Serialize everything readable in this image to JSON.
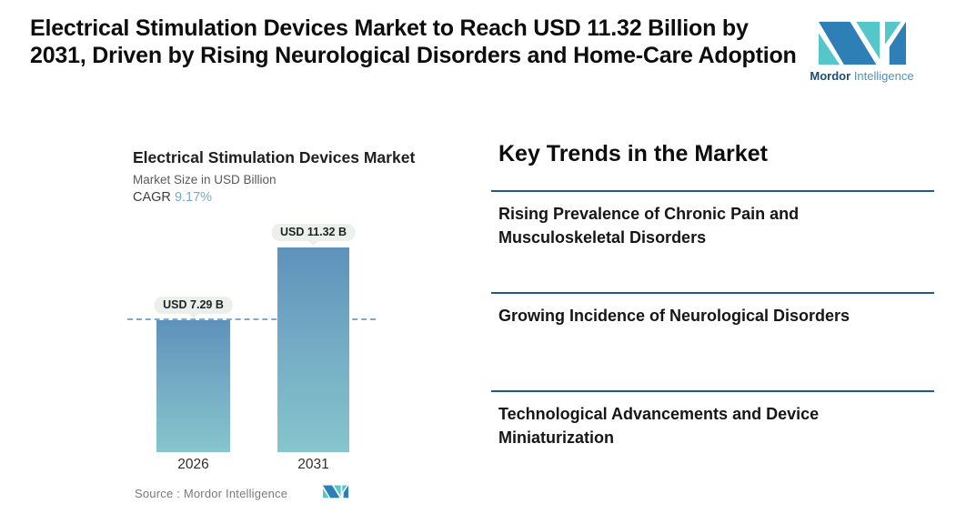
{
  "header": {
    "title": "Electrical Stimulation Devices Market to Reach USD 11.32 Billion by 2031, Driven by Rising Neurological Disorders and Home-Care Adoption"
  },
  "brand": {
    "name_bold": "Mordor",
    "name_light": "Intelligence",
    "colors": {
      "teal": "#55c7cb",
      "blue": "#2e7fb5",
      "navy": "#1d4e77",
      "light_blue": "#4c93be"
    }
  },
  "chart_data": {
    "type": "bar",
    "title": "Electrical Stimulation Devices Market",
    "subtitle": "Market Size in USD Billion",
    "cagr_label": "CAGR",
    "cagr_value": "9.17%",
    "categories": [
      "2026",
      "2031"
    ],
    "values": [
      7.29,
      11.32
    ],
    "value_labels": [
      "USD 7.29 B",
      "USD 11.32 B"
    ],
    "unit": "USD Billion",
    "ylim": [
      0,
      11.32
    ],
    "reference_line": {
      "at_value": 7.29,
      "style": "dashed",
      "color": "#7fa9d0"
    },
    "bar_gradient_top": "#5e92bb",
    "bar_gradient_bottom": "#85c5cc",
    "cagr_value_color": "#7ba7cf",
    "label_pill_background": "#ecf0ec",
    "source": "Source :  Mordor Intelligence",
    "legend": "none",
    "grid": "off"
  },
  "trends": {
    "heading": "Key Trends in the Market",
    "divider_color": "#1e5f80",
    "items": [
      {
        "text": "Rising Prevalence of Chronic Pain and Musculoskeletal Disorders"
      },
      {
        "text": "Growing Incidence of Neurological Disorders"
      },
      {
        "text": "Technological Advancements and Device Miniaturization"
      }
    ]
  }
}
